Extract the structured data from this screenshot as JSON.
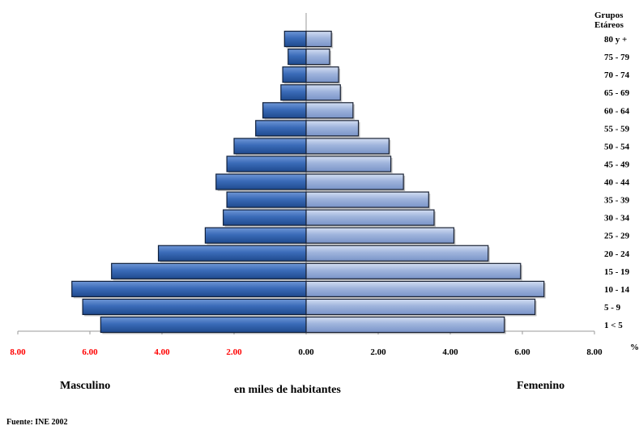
{
  "chart_data": {
    "type": "bar",
    "subtype": "population-pyramid",
    "legend_title": [
      "Grupos",
      "Etáreos"
    ],
    "categories": [
      "1 < 5",
      "5 - 9",
      "10 - 14",
      "15 - 19",
      "20 - 24",
      "25 - 29",
      "30 - 34",
      "35 - 39",
      "40 - 44",
      "45 - 49",
      "50 - 54",
      "55 - 59",
      "60 - 64",
      "65 - 69",
      "70 - 74",
      "75 - 79",
      "80 y +"
    ],
    "series": [
      {
        "name": "Masculino",
        "color": "#3a6bb8",
        "values": [
          5.7,
          6.2,
          6.5,
          5.4,
          4.1,
          2.8,
          2.3,
          2.2,
          2.5,
          2.2,
          2.0,
          1.4,
          1.2,
          0.7,
          0.65,
          0.5,
          0.6
        ]
      },
      {
        "name": "Femenino",
        "color": "#9fb4dc",
        "values": [
          5.5,
          6.35,
          6.6,
          5.95,
          5.05,
          4.1,
          3.55,
          3.4,
          2.7,
          2.35,
          2.3,
          1.45,
          1.3,
          0.95,
          0.9,
          0.65,
          0.7
        ]
      }
    ],
    "x_ticks": [
      "8.00",
      "6.00",
      "4.00",
      "2.00",
      "0.00",
      "2.00",
      "4.00",
      "6.00",
      "8.00"
    ],
    "xlim": [
      -8,
      8
    ],
    "x_unit_label": "%",
    "xlabel": "en miles de habitantes",
    "source": "Fuente: INE 2002",
    "left_tick_color": "#ff0000",
    "right_tick_color": "#000000"
  }
}
